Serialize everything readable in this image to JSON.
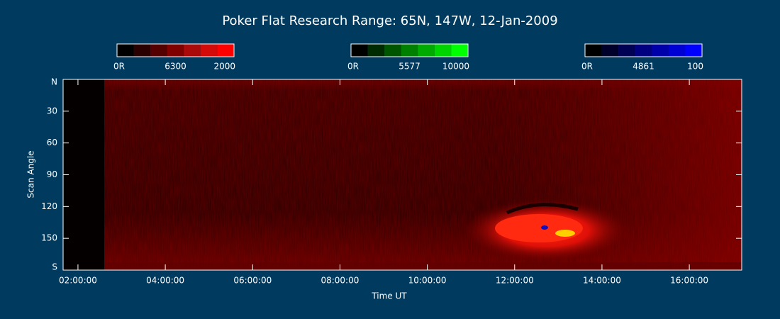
{
  "chart_data": {
    "type": "keogram",
    "title": "Poker Flat Research Range: 65N, 147W, 12-Jan-2009",
    "xlabel": "Time UT",
    "ylabel": "Scan Angle",
    "xlim": [
      1.66,
      17.2
    ],
    "xticks": [
      {
        "value": 2,
        "label": "02:00:00"
      },
      {
        "value": 4,
        "label": "04:00:00"
      },
      {
        "value": 6,
        "label": "06:00:00"
      },
      {
        "value": 8,
        "label": "08:00:00"
      },
      {
        "value": 10,
        "label": "10:00:00"
      },
      {
        "value": 12,
        "label": "12:00:00"
      },
      {
        "value": 14,
        "label": "14:00:00"
      },
      {
        "value": 16,
        "label": "16:00:00"
      }
    ],
    "ylim": [
      0,
      180
    ],
    "yticks": [
      {
        "value": 0,
        "label": "N"
      },
      30,
      60,
      90,
      120,
      150,
      {
        "value": 180,
        "label": "S"
      }
    ],
    "colorbars": [
      {
        "name": "6300",
        "ticks": [
          {
            "value": 0,
            "label": "0R"
          },
          2000
        ],
        "colors": [
          "#000000",
          "#2a0000",
          "#550000",
          "#800000",
          "#aa0a0a",
          "#d40a0a",
          "#ff0000"
        ]
      },
      {
        "name": "5577",
        "ticks": [
          {
            "value": 0,
            "label": "0R"
          },
          10000
        ],
        "colors": [
          "#000000",
          "#002a00",
          "#005500",
          "#008000",
          "#00aa00",
          "#00d400",
          "#00ff00"
        ]
      },
      {
        "name": "4861",
        "ticks": [
          {
            "value": 0,
            "label": "0R"
          },
          100
        ],
        "colors": [
          "#000000",
          "#00002a",
          "#000055",
          "#000080",
          "#0000aa",
          "#0000d4",
          "#0000ff"
        ]
      }
    ]
  }
}
